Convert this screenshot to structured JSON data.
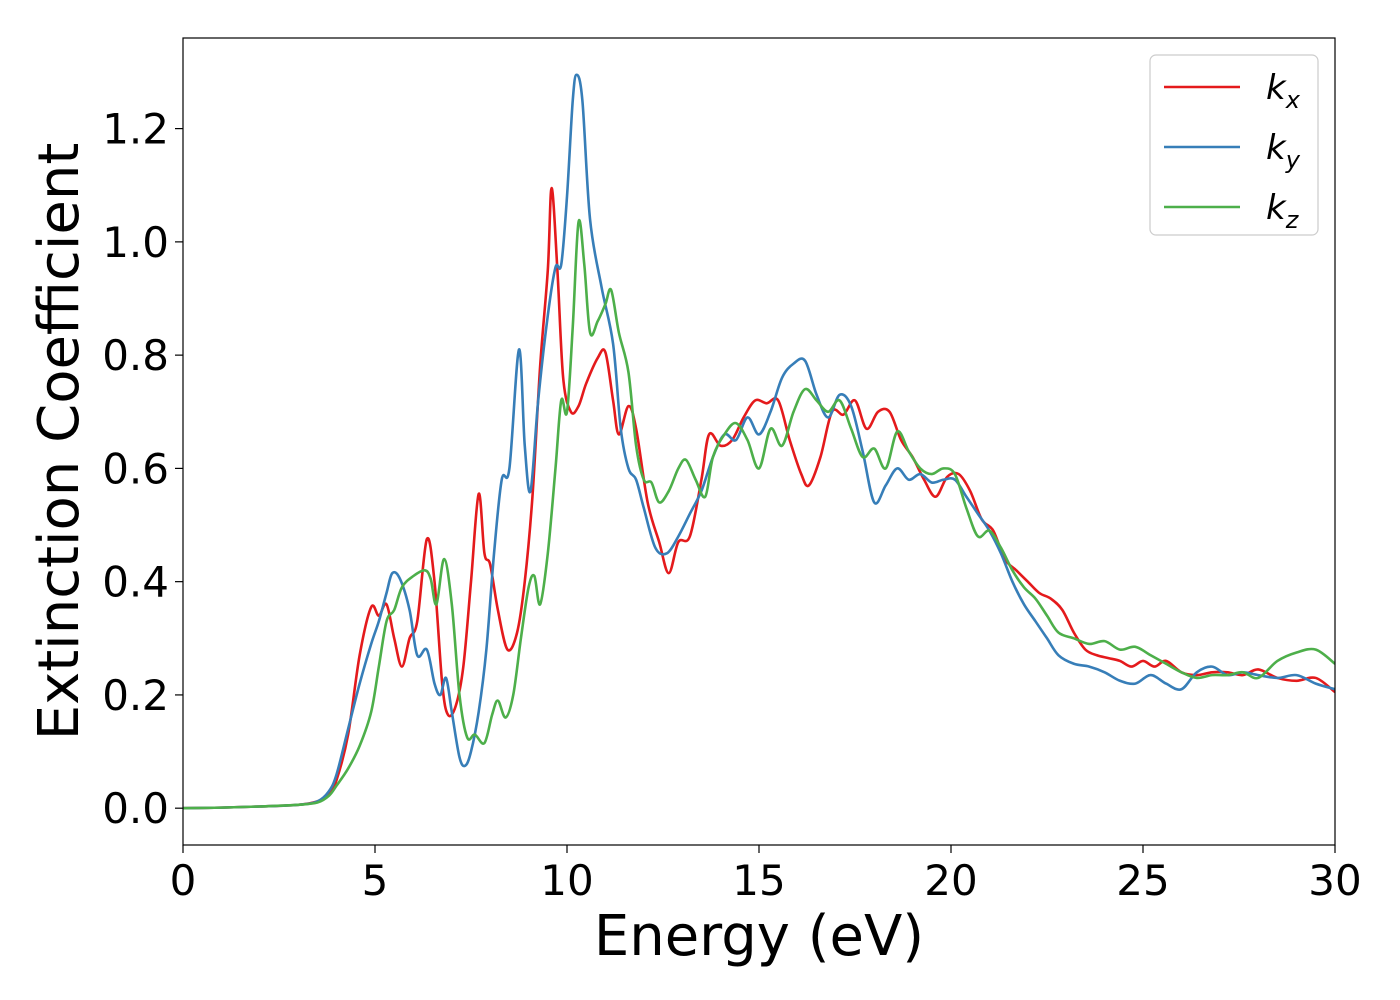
{
  "chart_data": {
    "type": "line",
    "title": "",
    "xlabel": "Energy (eV)",
    "ylabel": "Extinction Coefficient",
    "xlim": [
      0,
      30
    ],
    "ylim": [
      -0.065,
      1.36
    ],
    "xticks": [
      0,
      5,
      10,
      15,
      20,
      25,
      30
    ],
    "xtick_labels": [
      "0",
      "5",
      "10",
      "15",
      "20",
      "25",
      "30"
    ],
    "yticks": [
      0.0,
      0.2,
      0.4,
      0.6,
      0.8,
      1.0,
      1.2
    ],
    "ytick_labels": [
      "0.0",
      "0.2",
      "0.4",
      "0.6",
      "0.8",
      "1.0",
      "1.2"
    ],
    "grid": false,
    "legend": {
      "placement": "top-right",
      "entries": [
        {
          "base": "k",
          "sub": "x"
        },
        {
          "base": "k",
          "sub": "y"
        },
        {
          "base": "k",
          "sub": "z"
        }
      ]
    },
    "series": [
      {
        "name": "kx",
        "color": "#e41a1c",
        "points": [
          [
            0,
            0
          ],
          [
            1,
            0.001
          ],
          [
            2,
            0.003
          ],
          [
            3,
            0.006
          ],
          [
            3.5,
            0.012
          ],
          [
            3.8,
            0.025
          ],
          [
            4.0,
            0.05
          ],
          [
            4.3,
            0.13
          ],
          [
            4.6,
            0.27
          ],
          [
            4.9,
            0.355
          ],
          [
            5.1,
            0.34
          ],
          [
            5.3,
            0.36
          ],
          [
            5.5,
            0.3
          ],
          [
            5.7,
            0.25
          ],
          [
            5.9,
            0.3
          ],
          [
            6.1,
            0.33
          ],
          [
            6.35,
            0.475
          ],
          [
            6.55,
            0.4
          ],
          [
            6.75,
            0.22
          ],
          [
            6.9,
            0.165
          ],
          [
            7.1,
            0.18
          ],
          [
            7.3,
            0.25
          ],
          [
            7.5,
            0.4
          ],
          [
            7.7,
            0.555
          ],
          [
            7.85,
            0.45
          ],
          [
            8.0,
            0.43
          ],
          [
            8.2,
            0.35
          ],
          [
            8.45,
            0.28
          ],
          [
            8.7,
            0.31
          ],
          [
            8.9,
            0.4
          ],
          [
            9.1,
            0.55
          ],
          [
            9.3,
            0.78
          ],
          [
            9.5,
            0.95
          ],
          [
            9.6,
            1.095
          ],
          [
            9.75,
            0.95
          ],
          [
            9.9,
            0.76
          ],
          [
            10.1,
            0.7
          ],
          [
            10.3,
            0.71
          ],
          [
            10.5,
            0.75
          ],
          [
            10.8,
            0.795
          ],
          [
            11.0,
            0.805
          ],
          [
            11.2,
            0.72
          ],
          [
            11.35,
            0.66
          ],
          [
            11.6,
            0.71
          ],
          [
            11.8,
            0.67
          ],
          [
            12.1,
            0.54
          ],
          [
            12.4,
            0.47
          ],
          [
            12.65,
            0.415
          ],
          [
            12.9,
            0.47
          ],
          [
            13.2,
            0.48
          ],
          [
            13.5,
            0.58
          ],
          [
            13.7,
            0.66
          ],
          [
            14.0,
            0.64
          ],
          [
            14.3,
            0.65
          ],
          [
            14.6,
            0.69
          ],
          [
            14.9,
            0.72
          ],
          [
            15.2,
            0.715
          ],
          [
            15.5,
            0.72
          ],
          [
            15.8,
            0.65
          ],
          [
            16.1,
            0.59
          ],
          [
            16.3,
            0.57
          ],
          [
            16.6,
            0.62
          ],
          [
            16.9,
            0.7
          ],
          [
            17.2,
            0.695
          ],
          [
            17.5,
            0.72
          ],
          [
            17.8,
            0.67
          ],
          [
            18.1,
            0.7
          ],
          [
            18.4,
            0.7
          ],
          [
            18.7,
            0.65
          ],
          [
            19.0,
            0.62
          ],
          [
            19.3,
            0.58
          ],
          [
            19.6,
            0.55
          ],
          [
            19.9,
            0.585
          ],
          [
            20.2,
            0.59
          ],
          [
            20.5,
            0.56
          ],
          [
            20.8,
            0.51
          ],
          [
            21.1,
            0.49
          ],
          [
            21.4,
            0.44
          ],
          [
            21.7,
            0.42
          ],
          [
            22.0,
            0.4
          ],
          [
            22.3,
            0.38
          ],
          [
            22.6,
            0.37
          ],
          [
            22.9,
            0.35
          ],
          [
            23.2,
            0.31
          ],
          [
            23.5,
            0.28
          ],
          [
            23.8,
            0.27
          ],
          [
            24.1,
            0.265
          ],
          [
            24.4,
            0.26
          ],
          [
            24.7,
            0.25
          ],
          [
            25.0,
            0.26
          ],
          [
            25.3,
            0.25
          ],
          [
            25.6,
            0.26
          ],
          [
            26.0,
            0.24
          ],
          [
            26.4,
            0.235
          ],
          [
            26.8,
            0.24
          ],
          [
            27.2,
            0.24
          ],
          [
            27.6,
            0.235
          ],
          [
            28.0,
            0.245
          ],
          [
            28.5,
            0.23
          ],
          [
            29.0,
            0.225
          ],
          [
            29.5,
            0.23
          ],
          [
            30,
            0.205
          ]
        ]
      },
      {
        "name": "ky",
        "color": "#377eb8",
        "points": [
          [
            0,
            0
          ],
          [
            1,
            0.001
          ],
          [
            2,
            0.003
          ],
          [
            3,
            0.006
          ],
          [
            3.5,
            0.012
          ],
          [
            3.8,
            0.03
          ],
          [
            4.0,
            0.06
          ],
          [
            4.3,
            0.14
          ],
          [
            4.6,
            0.22
          ],
          [
            4.9,
            0.29
          ],
          [
            5.1,
            0.33
          ],
          [
            5.3,
            0.38
          ],
          [
            5.45,
            0.415
          ],
          [
            5.65,
            0.405
          ],
          [
            5.9,
            0.35
          ],
          [
            6.1,
            0.27
          ],
          [
            6.35,
            0.28
          ],
          [
            6.55,
            0.22
          ],
          [
            6.7,
            0.2
          ],
          [
            6.85,
            0.23
          ],
          [
            7.0,
            0.17
          ],
          [
            7.2,
            0.09
          ],
          [
            7.35,
            0.075
          ],
          [
            7.5,
            0.1
          ],
          [
            7.7,
            0.17
          ],
          [
            7.9,
            0.28
          ],
          [
            8.1,
            0.45
          ],
          [
            8.3,
            0.58
          ],
          [
            8.5,
            0.6
          ],
          [
            8.75,
            0.81
          ],
          [
            8.9,
            0.64
          ],
          [
            9.05,
            0.56
          ],
          [
            9.25,
            0.72
          ],
          [
            9.5,
            0.87
          ],
          [
            9.7,
            0.955
          ],
          [
            9.85,
            0.96
          ],
          [
            10.0,
            1.08
          ],
          [
            10.15,
            1.25
          ],
          [
            10.25,
            1.295
          ],
          [
            10.4,
            1.25
          ],
          [
            10.6,
            1.04
          ],
          [
            10.9,
            0.92
          ],
          [
            11.2,
            0.82
          ],
          [
            11.4,
            0.67
          ],
          [
            11.6,
            0.6
          ],
          [
            11.8,
            0.58
          ],
          [
            12.0,
            0.53
          ],
          [
            12.3,
            0.46
          ],
          [
            12.6,
            0.45
          ],
          [
            12.9,
            0.48
          ],
          [
            13.2,
            0.52
          ],
          [
            13.5,
            0.56
          ],
          [
            13.8,
            0.62
          ],
          [
            14.1,
            0.66
          ],
          [
            14.4,
            0.65
          ],
          [
            14.7,
            0.69
          ],
          [
            15.0,
            0.66
          ],
          [
            15.3,
            0.7
          ],
          [
            15.6,
            0.76
          ],
          [
            15.9,
            0.785
          ],
          [
            16.2,
            0.79
          ],
          [
            16.5,
            0.73
          ],
          [
            16.8,
            0.69
          ],
          [
            17.1,
            0.73
          ],
          [
            17.4,
            0.71
          ],
          [
            17.7,
            0.63
          ],
          [
            18.0,
            0.54
          ],
          [
            18.3,
            0.57
          ],
          [
            18.6,
            0.6
          ],
          [
            18.9,
            0.58
          ],
          [
            19.2,
            0.59
          ],
          [
            19.5,
            0.575
          ],
          [
            19.8,
            0.58
          ],
          [
            20.1,
            0.58
          ],
          [
            20.4,
            0.55
          ],
          [
            20.7,
            0.52
          ],
          [
            21.0,
            0.49
          ],
          [
            21.3,
            0.45
          ],
          [
            21.6,
            0.4
          ],
          [
            21.9,
            0.36
          ],
          [
            22.2,
            0.33
          ],
          [
            22.5,
            0.3
          ],
          [
            22.8,
            0.27
          ],
          [
            23.2,
            0.255
          ],
          [
            23.6,
            0.25
          ],
          [
            24.0,
            0.24
          ],
          [
            24.4,
            0.225
          ],
          [
            24.8,
            0.22
          ],
          [
            25.2,
            0.235
          ],
          [
            25.6,
            0.22
          ],
          [
            26.0,
            0.21
          ],
          [
            26.4,
            0.24
          ],
          [
            26.8,
            0.25
          ],
          [
            27.2,
            0.235
          ],
          [
            27.6,
            0.24
          ],
          [
            28.0,
            0.235
          ],
          [
            28.5,
            0.23
          ],
          [
            29.0,
            0.235
          ],
          [
            29.5,
            0.22
          ],
          [
            30,
            0.21
          ]
        ]
      },
      {
        "name": "kz",
        "color": "#4daf4a",
        "points": [
          [
            0,
            0
          ],
          [
            1,
            0.001
          ],
          [
            2,
            0.003
          ],
          [
            3,
            0.006
          ],
          [
            3.5,
            0.01
          ],
          [
            3.8,
            0.022
          ],
          [
            4.0,
            0.04
          ],
          [
            4.3,
            0.07
          ],
          [
            4.6,
            0.11
          ],
          [
            4.9,
            0.17
          ],
          [
            5.1,
            0.25
          ],
          [
            5.3,
            0.33
          ],
          [
            5.5,
            0.35
          ],
          [
            5.7,
            0.39
          ],
          [
            6.0,
            0.41
          ],
          [
            6.3,
            0.42
          ],
          [
            6.45,
            0.405
          ],
          [
            6.6,
            0.36
          ],
          [
            6.8,
            0.44
          ],
          [
            7.0,
            0.36
          ],
          [
            7.2,
            0.2
          ],
          [
            7.4,
            0.125
          ],
          [
            7.6,
            0.13
          ],
          [
            7.85,
            0.115
          ],
          [
            8.05,
            0.165
          ],
          [
            8.2,
            0.19
          ],
          [
            8.4,
            0.16
          ],
          [
            8.6,
            0.2
          ],
          [
            8.8,
            0.3
          ],
          [
            9.0,
            0.39
          ],
          [
            9.15,
            0.41
          ],
          [
            9.3,
            0.36
          ],
          [
            9.5,
            0.45
          ],
          [
            9.7,
            0.6
          ],
          [
            9.85,
            0.72
          ],
          [
            10.0,
            0.7
          ],
          [
            10.15,
            0.85
          ],
          [
            10.3,
            1.035
          ],
          [
            10.45,
            0.96
          ],
          [
            10.6,
            0.84
          ],
          [
            10.8,
            0.86
          ],
          [
            11.0,
            0.89
          ],
          [
            11.15,
            0.915
          ],
          [
            11.35,
            0.84
          ],
          [
            11.6,
            0.77
          ],
          [
            11.8,
            0.64
          ],
          [
            12.0,
            0.58
          ],
          [
            12.2,
            0.575
          ],
          [
            12.4,
            0.54
          ],
          [
            12.65,
            0.56
          ],
          [
            12.9,
            0.6
          ],
          [
            13.1,
            0.615
          ],
          [
            13.35,
            0.58
          ],
          [
            13.6,
            0.55
          ],
          [
            13.8,
            0.62
          ],
          [
            14.1,
            0.66
          ],
          [
            14.4,
            0.68
          ],
          [
            14.7,
            0.65
          ],
          [
            15.0,
            0.6
          ],
          [
            15.3,
            0.67
          ],
          [
            15.6,
            0.64
          ],
          [
            15.9,
            0.7
          ],
          [
            16.2,
            0.74
          ],
          [
            16.5,
            0.72
          ],
          [
            16.8,
            0.7
          ],
          [
            17.1,
            0.72
          ],
          [
            17.4,
            0.67
          ],
          [
            17.7,
            0.62
          ],
          [
            18.0,
            0.635
          ],
          [
            18.3,
            0.6
          ],
          [
            18.6,
            0.665
          ],
          [
            18.9,
            0.63
          ],
          [
            19.2,
            0.6
          ],
          [
            19.5,
            0.59
          ],
          [
            19.8,
            0.6
          ],
          [
            20.1,
            0.59
          ],
          [
            20.4,
            0.53
          ],
          [
            20.7,
            0.48
          ],
          [
            21.0,
            0.49
          ],
          [
            21.3,
            0.46
          ],
          [
            21.6,
            0.42
          ],
          [
            21.9,
            0.39
          ],
          [
            22.2,
            0.37
          ],
          [
            22.5,
            0.34
          ],
          [
            22.8,
            0.31
          ],
          [
            23.2,
            0.3
          ],
          [
            23.6,
            0.29
          ],
          [
            24.0,
            0.295
          ],
          [
            24.4,
            0.28
          ],
          [
            24.8,
            0.285
          ],
          [
            25.2,
            0.27
          ],
          [
            25.6,
            0.255
          ],
          [
            26.0,
            0.24
          ],
          [
            26.4,
            0.23
          ],
          [
            26.8,
            0.235
          ],
          [
            27.2,
            0.235
          ],
          [
            27.6,
            0.24
          ],
          [
            28.0,
            0.23
          ],
          [
            28.5,
            0.26
          ],
          [
            29.0,
            0.275
          ],
          [
            29.5,
            0.28
          ],
          [
            30,
            0.255
          ]
        ]
      }
    ]
  }
}
